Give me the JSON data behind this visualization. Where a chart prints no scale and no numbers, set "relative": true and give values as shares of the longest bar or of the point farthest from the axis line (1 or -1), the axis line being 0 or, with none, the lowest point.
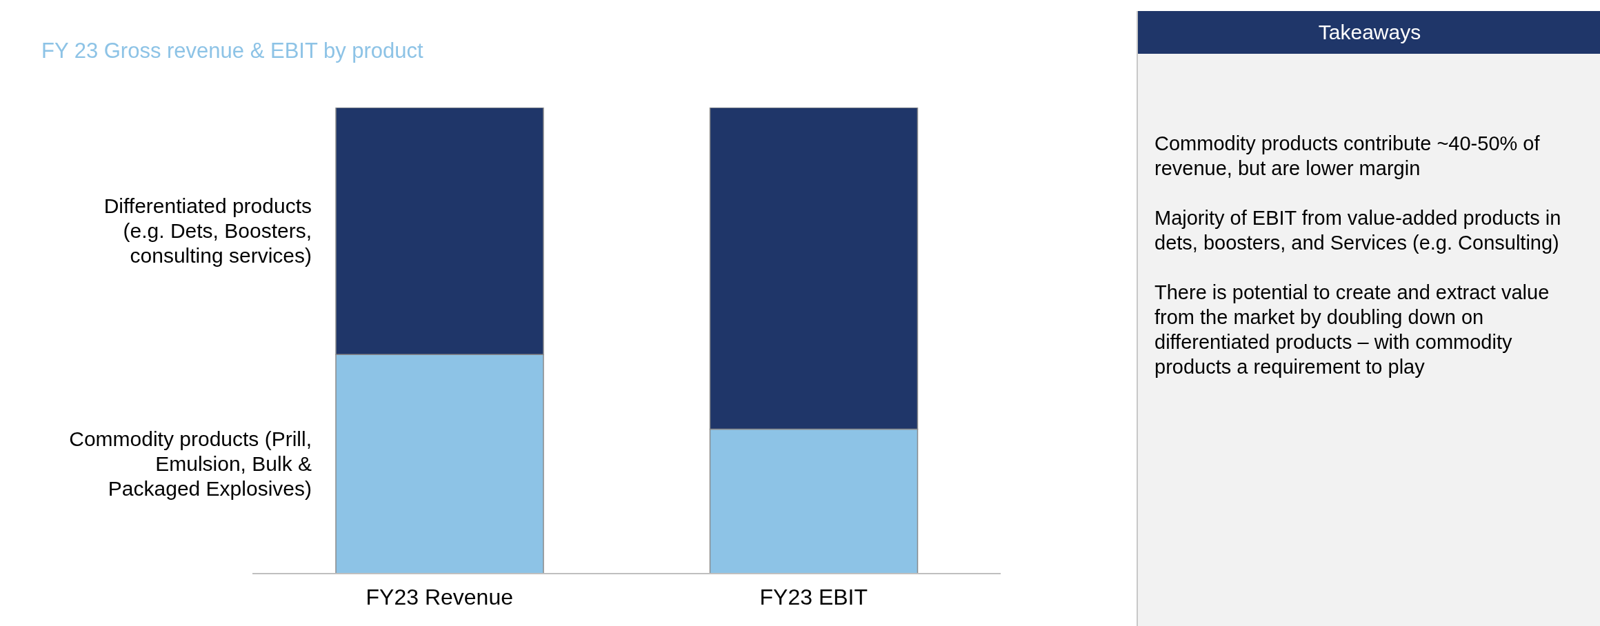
{
  "chart_data": [
    {
      "type": "bar",
      "title": "FY 23 Gross revenue & EBIT by product",
      "categories": [
        "FY23 Revenue",
        "FY23 EBIT"
      ],
      "stacked": true,
      "relative": true,
      "series": [
        {
          "name": "Commodity products (Prill, Emulsion, Bulk & Packaged Explosives)",
          "color": "#8dc3e6",
          "values": [
            0.47,
            0.31
          ]
        },
        {
          "name": "Differentiated products (e.g. Dets, Boosters, consulting services)",
          "color": "#1f3669",
          "values": [
            0.53,
            0.69
          ]
        }
      ]
    },
    {
      "type": "other",
      "title": "Takeaways",
      "annotations": [
        "Commodity products contribute ~40-50% of revenue, but are lower margin",
        "Majority of EBIT from value-added products in dets, boosters, and Services (e.g. Consulting)",
        "There is potential to create and extract value from the market by doubling down on differentiated products – with commodity products a requirement to play"
      ]
    }
  ]
}
